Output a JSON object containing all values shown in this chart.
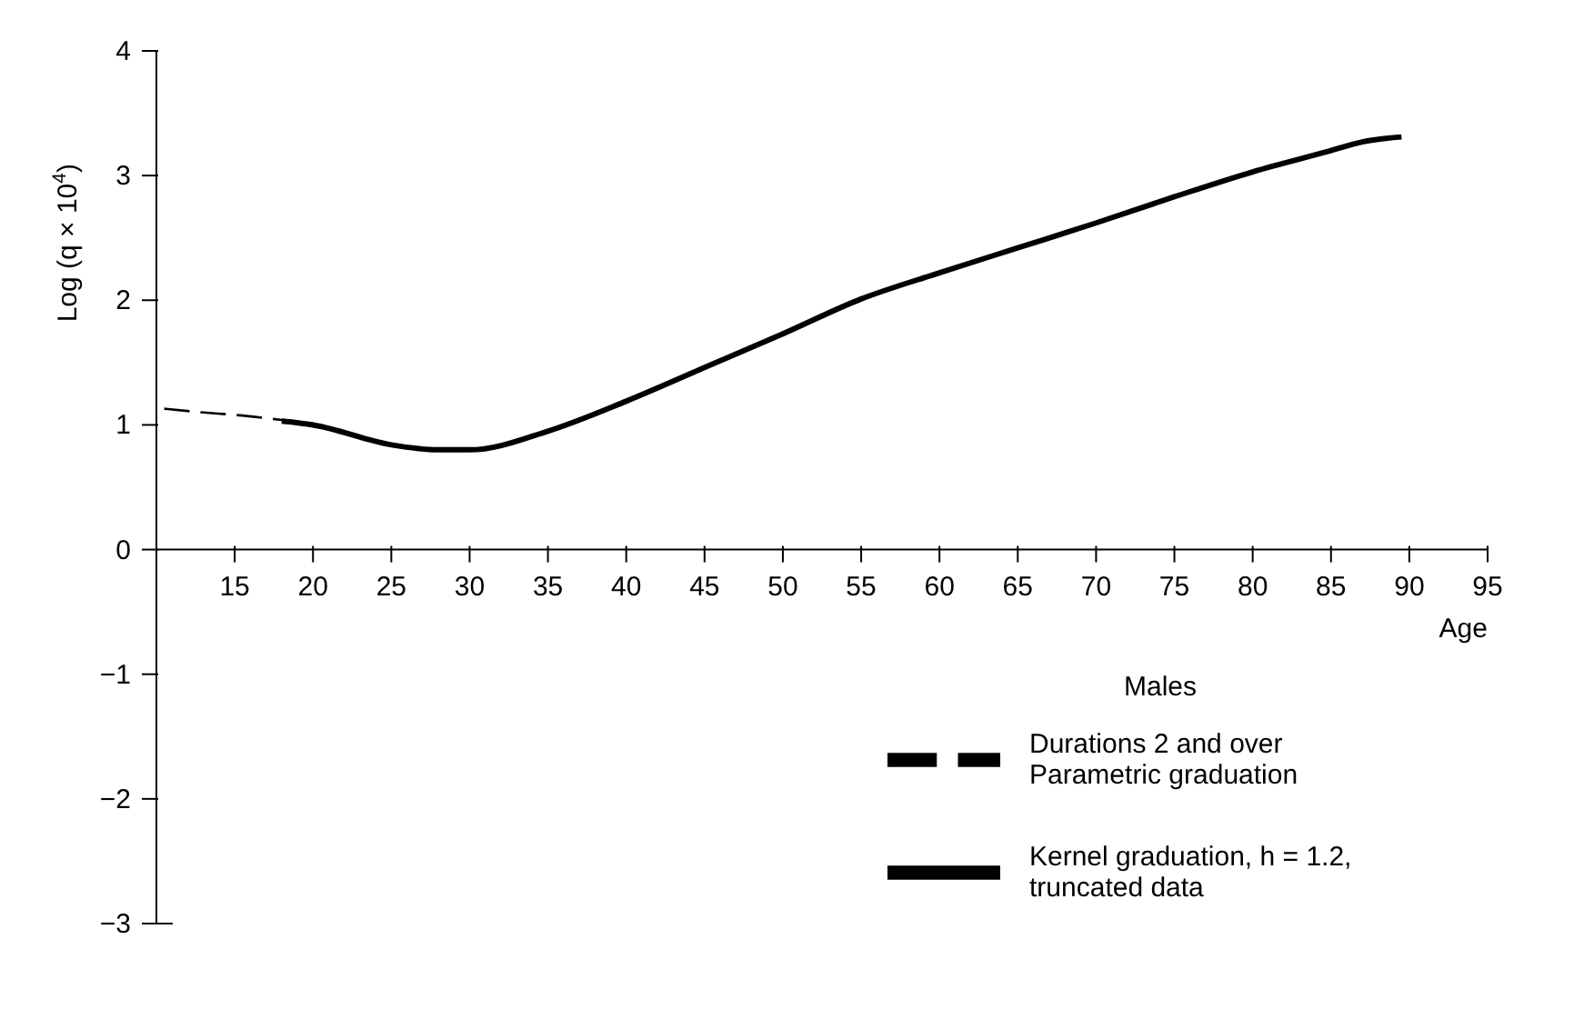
{
  "chart_data": {
    "type": "line",
    "xlabel": "Age",
    "ylabel": "Log (q × 10$^{4}$)",
    "legend_title": "Males",
    "legend": "bottom right",
    "grid": false,
    "marker": "none",
    "xlim": [
      10,
      95
    ],
    "ylim": [
      -3,
      4
    ],
    "xticks": [
      15,
      20,
      25,
      30,
      35,
      40,
      45,
      50,
      55,
      60,
      65,
      70,
      75,
      80,
      85,
      90,
      95
    ],
    "yticks": [
      {
        "value": -3,
        "label": "−3"
      },
      {
        "value": -2,
        "label": "−2"
      },
      {
        "value": -1,
        "label": "−1"
      },
      0,
      1,
      2,
      3,
      4
    ],
    "series": [
      {
        "name": "Durations 2 and over Parametric graduation",
        "color": "#000000",
        "line_style": "dashed",
        "x": [
          10.5,
          13,
          15,
          18,
          20
        ],
        "values": [
          1.13,
          1.1,
          1.08,
          1.04,
          1.01
        ]
      },
      {
        "name": "Kernel graduation, h = 1.2, truncated data",
        "color": "#000000",
        "line_style": "solid",
        "x": [
          18,
          20,
          25,
          28,
          30,
          35,
          40,
          45,
          50,
          55,
          60,
          65,
          70,
          75,
          80,
          85,
          87,
          89.5
        ],
        "values": [
          1.03,
          1.0,
          0.84,
          0.8,
          0.8,
          0.95,
          1.19,
          1.46,
          1.73,
          2.01,
          2.22,
          2.42,
          2.62,
          2.83,
          3.03,
          3.2,
          3.27,
          3.31
        ]
      }
    ]
  }
}
